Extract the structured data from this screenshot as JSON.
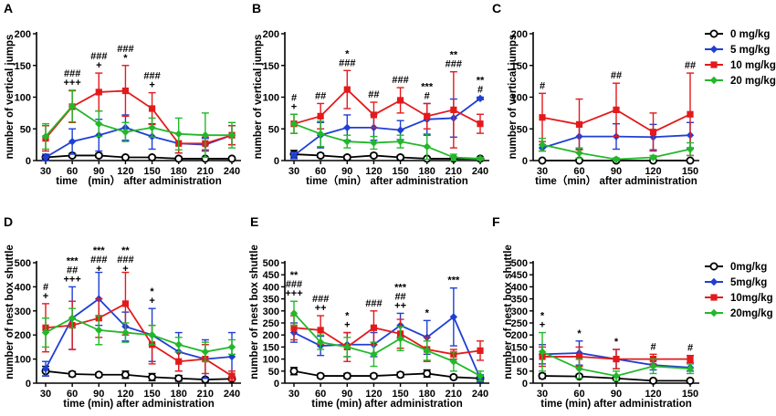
{
  "legend_top": {
    "entries": [
      {
        "label": "0 mg/kg",
        "color": "#000000",
        "marker": "circle-open"
      },
      {
        "label": "5 mg/kg",
        "color": "#1f3fd4",
        "marker": "diamond"
      },
      {
        "label": "10 mg/kg",
        "color": "#e31a1c",
        "marker": "square"
      },
      {
        "label": "20 mg/kg",
        "color": "#22b82a",
        "marker": "diamond"
      }
    ]
  },
  "legend_bottom": {
    "entries": [
      {
        "label": "0mg/kg",
        "color": "#000000",
        "marker": "circle-open"
      },
      {
        "label": "5mg/kg",
        "color": "#1f3fd4",
        "marker": "diamond"
      },
      {
        "label": "10mg/kg",
        "color": "#e31a1c",
        "marker": "square"
      },
      {
        "label": "20mg/kg",
        "color": "#22b82a",
        "marker": "diamond"
      }
    ]
  },
  "chart_data": [
    {
      "id": "A",
      "type": "line",
      "panel_label": "A",
      "ylabel": "number of vertical jumps",
      "xlabel": "time　(min） after administration",
      "ylim": [
        0,
        200
      ],
      "yticks": [
        "0",
        "50",
        "100",
        "150",
        "200"
      ],
      "categories": [
        "30",
        "60",
        "90",
        "120",
        "150",
        "180",
        "210",
        "240"
      ],
      "series": [
        {
          "name": "0 mg/kg",
          "values": [
            5,
            8,
            8,
            5,
            5,
            3,
            3,
            3
          ],
          "err": [
            2,
            3,
            3,
            2,
            2,
            2,
            1,
            1
          ]
        },
        {
          "name": "5 mg/kg",
          "values": [
            5,
            30,
            40,
            52,
            38,
            27,
            25,
            40
          ],
          "err": [
            5,
            20,
            25,
            20,
            20,
            15,
            10,
            15
          ]
        },
        {
          "name": "10 mg/kg",
          "values": [
            35,
            85,
            108,
            110,
            82,
            27,
            27,
            40
          ],
          "err": [
            20,
            25,
            30,
            40,
            25,
            15,
            10,
            15
          ]
        },
        {
          "name": "20 mg/kg",
          "values": [
            38,
            86,
            58,
            45,
            52,
            42,
            40,
            40
          ],
          "err": [
            20,
            25,
            20,
            15,
            15,
            25,
            35,
            20
          ]
        }
      ],
      "annotations": [
        {
          "cat": "60",
          "lines": [
            "###",
            "+++"
          ]
        },
        {
          "cat": "90",
          "lines": [
            "###",
            "+"
          ]
        },
        {
          "cat": "120",
          "lines": [
            "###",
            "*"
          ]
        },
        {
          "cat": "150",
          "lines": [
            "###",
            "+"
          ]
        }
      ]
    },
    {
      "id": "B",
      "type": "line",
      "panel_label": "B",
      "ylabel": "number of vertical jumps",
      "xlabel": "time（min） after administration",
      "ylim": [
        0,
        200
      ],
      "yticks": [
        "0",
        "50",
        "100",
        "150",
        "200"
      ],
      "categories": [
        "30",
        "60",
        "90",
        "120",
        "150",
        "180",
        "210",
        "240"
      ],
      "series": [
        {
          "name": "0 mg/kg",
          "values": [
            10,
            8,
            5,
            8,
            5,
            3,
            3,
            3
          ],
          "err": [
            6,
            3,
            3,
            3,
            3,
            2,
            1,
            1
          ]
        },
        {
          "name": "5 mg/kg",
          "values": [
            8,
            40,
            52,
            52,
            48,
            65,
            67,
            98
          ],
          "err": [
            5,
            20,
            20,
            20,
            15,
            25,
            30,
            2
          ]
        },
        {
          "name": "10 mg/kg",
          "values": [
            58,
            70,
            112,
            72,
            95,
            70,
            80,
            58
          ],
          "err": [
            15,
            20,
            30,
            20,
            20,
            20,
            60,
            15
          ]
        },
        {
          "name": "20 mg/kg",
          "values": [
            58,
            42,
            30,
            28,
            30,
            22,
            5,
            3
          ],
          "err": [
            15,
            20,
            10,
            10,
            10,
            20,
            5,
            2
          ]
        }
      ],
      "annotations": [
        {
          "cat": "30",
          "lines": [
            "#",
            "+"
          ]
        },
        {
          "cat": "60",
          "lines": [
            "##"
          ]
        },
        {
          "cat": "90",
          "lines": [
            "*",
            "###"
          ]
        },
        {
          "cat": "120",
          "lines": [
            "##"
          ]
        },
        {
          "cat": "150",
          "lines": [
            "###"
          ]
        },
        {
          "cat": "180",
          "lines": [
            "***",
            "#"
          ]
        },
        {
          "cat": "210",
          "lines": [
            "**",
            "###"
          ]
        },
        {
          "cat": "240",
          "lines": [
            "**",
            "#"
          ]
        }
      ]
    },
    {
      "id": "C",
      "type": "line",
      "panel_label": "C",
      "ylabel": "number of vertical jumps",
      "xlabel": "time（min） after administration",
      "ylim": [
        0,
        200
      ],
      "yticks": [
        "0",
        "50",
        "100",
        "150",
        "200"
      ],
      "categories": [
        "30",
        "60",
        "90",
        "120",
        "150"
      ],
      "series": [
        {
          "name": "0 mg/kg",
          "values": [
            0,
            0,
            0,
            0,
            0
          ],
          "err": [
            0,
            0,
            0,
            0,
            0
          ]
        },
        {
          "name": "5 mg/kg",
          "values": [
            20,
            38,
            38,
            37,
            40
          ],
          "err": [
            5,
            20,
            20,
            20,
            20
          ]
        },
        {
          "name": "10 mg/kg",
          "values": [
            68,
            57,
            80,
            45,
            73
          ],
          "err": [
            38,
            40,
            42,
            30,
            65
          ]
        },
        {
          "name": "20 mg/kg",
          "values": [
            25,
            12,
            2,
            5,
            18
          ],
          "err": [
            10,
            8,
            2,
            3,
            10
          ]
        }
      ],
      "annotations": [
        {
          "cat": "30",
          "lines": [
            "#"
          ]
        },
        {
          "cat": "90",
          "lines": [
            "##"
          ]
        },
        {
          "cat": "150",
          "lines": [
            "##"
          ]
        }
      ]
    },
    {
      "id": "D",
      "type": "line",
      "panel_label": "D",
      "ylabel": "number of nest box shuttle",
      "xlabel": "time (min) after administration",
      "ylim": [
        0,
        500
      ],
      "yticks": [
        "0",
        "100",
        "200",
        "300",
        "400",
        "500"
      ],
      "categories": [
        "30",
        "60",
        "90",
        "120",
        "150",
        "180",
        "210",
        "240"
      ],
      "series": [
        {
          "name": "0 mg/kg",
          "values": [
            50,
            38,
            35,
            35,
            25,
            20,
            15,
            18
          ],
          "err": [
            20,
            10,
            8,
            15,
            15,
            12,
            8,
            8
          ]
        },
        {
          "name": "5 mg/kg",
          "values": [
            60,
            270,
            350,
            235,
            200,
            130,
            100,
            110
          ],
          "err": [
            30,
            130,
            110,
            60,
            110,
            80,
            80,
            100
          ]
        },
        {
          "name": "10 mg/kg",
          "values": [
            230,
            240,
            270,
            330,
            160,
            90,
            100,
            30
          ],
          "err": [
            100,
            100,
            80,
            130,
            80,
            40,
            60,
            20
          ]
        },
        {
          "name": "20 mg/kg",
          "values": [
            210,
            270,
            220,
            210,
            200,
            160,
            130,
            150
          ],
          "err": [
            60,
            40,
            60,
            40,
            40,
            30,
            40,
            30
          ]
        }
      ],
      "annotations": [
        {
          "cat": "30",
          "lines": [
            "#",
            "+"
          ]
        },
        {
          "cat": "60",
          "lines": [
            "***",
            "##",
            "+++"
          ]
        },
        {
          "cat": "90",
          "lines": [
            "***",
            "###",
            "+"
          ]
        },
        {
          "cat": "120",
          "lines": [
            "**",
            "###",
            "+"
          ]
        },
        {
          "cat": "150",
          "lines": [
            "*",
            "+"
          ]
        }
      ]
    },
    {
      "id": "E",
      "type": "line",
      "panel_label": "E",
      "ylabel": "number of nest box shuttle",
      "xlabel": "time (min) after administration",
      "ylim": [
        0,
        500
      ],
      "yticks": [
        "0",
        "50",
        "100",
        "150",
        "200",
        "250",
        "300",
        "350",
        "400",
        "450",
        "500"
      ],
      "categories": [
        "30",
        "60",
        "90",
        "120",
        "150",
        "180",
        "210",
        "240"
      ],
      "series": [
        {
          "name": "0 mg/kg",
          "values": [
            50,
            30,
            30,
            30,
            35,
            40,
            25,
            20
          ],
          "err": [
            15,
            8,
            10,
            8,
            10,
            15,
            8,
            8
          ]
        },
        {
          "name": "5 mg/kg",
          "values": [
            210,
            155,
            160,
            160,
            240,
            190,
            275,
            20
          ],
          "err": [
            40,
            40,
            50,
            50,
            50,
            70,
            120,
            15
          ]
        },
        {
          "name": "10 mg/kg",
          "values": [
            230,
            220,
            150,
            230,
            205,
            140,
            120,
            135
          ],
          "err": [
            50,
            60,
            60,
            70,
            60,
            50,
            20,
            40
          ]
        },
        {
          "name": "20 mg/kg",
          "values": [
            290,
            170,
            150,
            120,
            185,
            135,
            90,
            30
          ],
          "err": [
            50,
            30,
            40,
            50,
            50,
            40,
            40,
            20
          ]
        }
      ],
      "annotations": [
        {
          "cat": "30",
          "lines": [
            "**",
            "###",
            "+++"
          ]
        },
        {
          "cat": "60",
          "lines": [
            "###",
            "++"
          ]
        },
        {
          "cat": "90",
          "lines": [
            "*",
            "+"
          ]
        },
        {
          "cat": "120",
          "lines": [
            "###"
          ]
        },
        {
          "cat": "150",
          "lines": [
            "***",
            "##",
            "++"
          ]
        },
        {
          "cat": "180",
          "lines": [
            "*"
          ]
        },
        {
          "cat": "210",
          "lines": [
            "***"
          ]
        }
      ]
    },
    {
      "id": "F",
      "type": "line",
      "panel_label": "F",
      "ylabel": "number of nest box shuttle",
      "xlabel": "time (min) after administration",
      "ylim": [
        0,
        500
      ],
      "yticks": [
        "0",
        "50",
        "100",
        "150",
        "200",
        "250",
        "300",
        "350",
        "400",
        "450",
        "500"
      ],
      "categories": [
        "30",
        "60",
        "90",
        "120",
        "150"
      ],
      "series": [
        {
          "name": "0 mg/kg",
          "values": [
            30,
            28,
            20,
            10,
            10
          ],
          "err": [
            10,
            8,
            6,
            4,
            4
          ]
        },
        {
          "name": "5 mg/kg",
          "values": [
            120,
            125,
            100,
            75,
            65
          ],
          "err": [
            40,
            50,
            40,
            20,
            15
          ]
        },
        {
          "name": "10 mg/kg",
          "values": [
            110,
            110,
            100,
            100,
            100
          ],
          "err": [
            40,
            40,
            40,
            20,
            15
          ]
        },
        {
          "name": "20 mg/kg",
          "values": [
            130,
            60,
            30,
            70,
            60
          ],
          "err": [
            80,
            40,
            20,
            30,
            20
          ]
        }
      ],
      "annotations": [
        {
          "cat": "30",
          "lines": [
            "*",
            "+"
          ]
        },
        {
          "cat": "60",
          "lines": [
            "*"
          ]
        },
        {
          "cat": "90",
          "lines": [
            "*"
          ]
        },
        {
          "cat": "120",
          "lines": [
            "#"
          ]
        },
        {
          "cat": "150",
          "lines": [
            "#"
          ]
        }
      ]
    }
  ]
}
